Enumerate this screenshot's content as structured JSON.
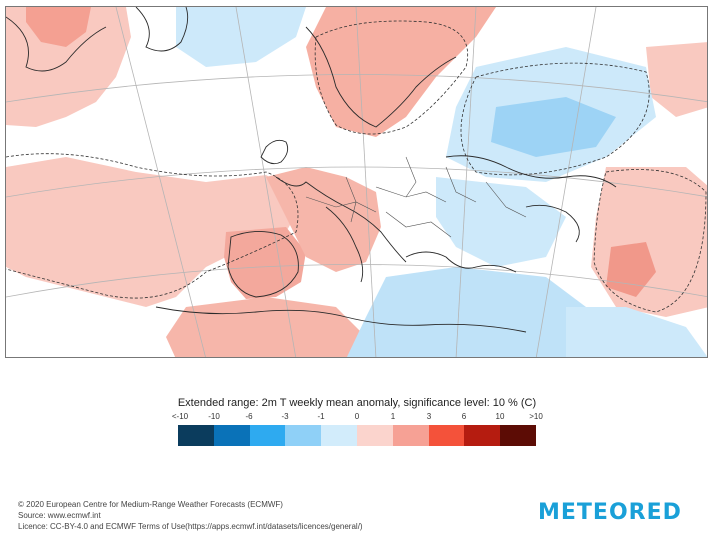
{
  "map": {
    "title": "Extended range: 2m T weekly mean anomaly, significance level: 10 % (C)",
    "region": "Europe and North Atlantic"
  },
  "legend": {
    "ticks": [
      "<-10",
      "-10",
      "-6",
      "-3",
      "-1",
      "0",
      "1",
      "3",
      "6",
      "10",
      ">10"
    ],
    "colors": [
      "#0b3c5d",
      "#0a72b8",
      "#2eaaf0",
      "#8fd0f7",
      "#d2ecfb",
      "#fbd4cd",
      "#f6a195",
      "#f4523a",
      "#b51c10",
      "#5c0c05"
    ]
  },
  "credits": {
    "line1": "© 2020 European Centre for Medium-Range Weather Forecasts (ECMWF)",
    "line2": "Source: www.ecmwf.int",
    "line3": "Licence: CC-BY-4.0 and ECMWF Terms of Use(https://apps.ecmwf.int/datasets/licences/general/)"
  },
  "brand": {
    "name": "METEORED"
  }
}
